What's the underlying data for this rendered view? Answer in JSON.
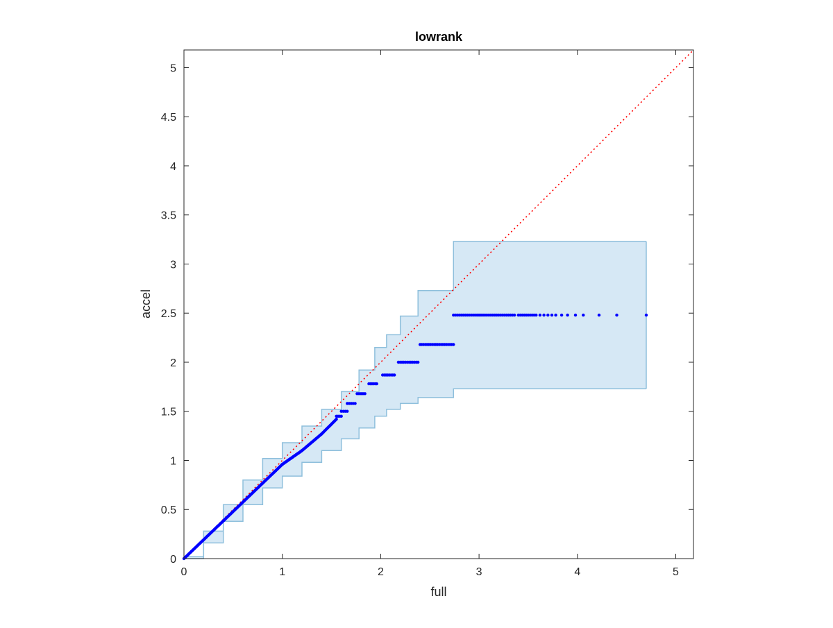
{
  "chart_data": {
    "type": "scatter",
    "title": "lowrank",
    "xlabel": "full",
    "ylabel": "accel",
    "xlim": [
      0,
      5.18
    ],
    "ylim": [
      0,
      5.18
    ],
    "xticks": [
      0,
      1,
      2,
      3,
      4,
      5
    ],
    "yticks": [
      0,
      0.5,
      1,
      1.5,
      2,
      2.5,
      3,
      3.5,
      4,
      4.5,
      5
    ],
    "xtick_labels": [
      "0",
      "1",
      "2",
      "3",
      "4",
      "5"
    ],
    "ytick_labels": [
      "0",
      "0.5",
      "1",
      "1.5",
      "2",
      "2.5",
      "3",
      "3.5",
      "4",
      "4.5",
      "5"
    ],
    "grid": false,
    "colors": {
      "points": "#0000ff",
      "reference_line": "#ff0000",
      "band_fill": "#d6e8f5",
      "band_edge": "#8ebfdc",
      "axes": "#262626"
    },
    "reference_line": {
      "style": "dotted",
      "x": [
        0,
        5.18
      ],
      "y": [
        0,
        5.18
      ]
    },
    "confidence_band": {
      "x": [
        0,
        0.2,
        0.4,
        0.6,
        0.8,
        1.0,
        1.2,
        1.4,
        1.6,
        1.78,
        1.94,
        2.06,
        2.2,
        2.38,
        2.74,
        4.7
      ],
      "upper": [
        0.02,
        0.28,
        0.55,
        0.8,
        1.02,
        1.18,
        1.35,
        1.52,
        1.7,
        1.92,
        2.15,
        2.28,
        2.47,
        2.73,
        3.23,
        3.23
      ],
      "lower": [
        0,
        0.16,
        0.38,
        0.55,
        0.72,
        0.84,
        0.98,
        1.1,
        1.22,
        1.33,
        1.45,
        1.52,
        1.58,
        1.64,
        1.73,
        1.73
      ]
    },
    "series": [
      {
        "segments": [
          {
            "x_start": 0.0,
            "x_end": 1.0,
            "y_start": 0.0,
            "y_end": 0.96,
            "count": 120
          },
          {
            "x_start": 1.0,
            "x_end": 1.2,
            "y_start": 0.96,
            "y_end": 1.1,
            "count": 30
          },
          {
            "x_start": 1.2,
            "x_end": 1.4,
            "y_start": 1.1,
            "y_end": 1.27,
            "count": 25
          },
          {
            "x_start": 1.4,
            "x_end": 1.55,
            "y_start": 1.27,
            "y_end": 1.42,
            "count": 18
          }
        ],
        "steps": [
          {
            "y": 1.45,
            "x_start": 1.55,
            "x_end": 1.6,
            "count": 4
          },
          {
            "y": 1.5,
            "x_start": 1.6,
            "x_end": 1.66,
            "count": 4
          },
          {
            "y": 1.58,
            "x_start": 1.66,
            "x_end": 1.74,
            "count": 5
          },
          {
            "y": 1.68,
            "x_start": 1.76,
            "x_end": 1.84,
            "count": 5
          },
          {
            "y": 1.78,
            "x_start": 1.88,
            "x_end": 1.96,
            "count": 6
          },
          {
            "y": 1.87,
            "x_start": 2.02,
            "x_end": 2.14,
            "count": 8
          },
          {
            "y": 2.0,
            "x_start": 2.18,
            "x_end": 2.38,
            "count": 12
          },
          {
            "y": 2.18,
            "x_start": 2.4,
            "x_end": 2.74,
            "count": 20
          },
          {
            "y": 2.48,
            "x": [
              2.74,
              2.76,
              2.78,
              2.8,
              2.82,
              2.84,
              2.86,
              2.88,
              2.9,
              2.92,
              2.94,
              2.96,
              2.98,
              3.0,
              3.02,
              3.04,
              3.06,
              3.08,
              3.1,
              3.12,
              3.14,
              3.16,
              3.18,
              3.2,
              3.22,
              3.24,
              3.26,
              3.28,
              3.3,
              3.32,
              3.34,
              3.36,
              3.4,
              3.42,
              3.44,
              3.46,
              3.48,
              3.5,
              3.52,
              3.54,
              3.56,
              3.58,
              3.62,
              3.66,
              3.7,
              3.74,
              3.78,
              3.84,
              3.9,
              3.98,
              4.06,
              4.22,
              4.4,
              4.7
            ]
          }
        ]
      }
    ]
  }
}
